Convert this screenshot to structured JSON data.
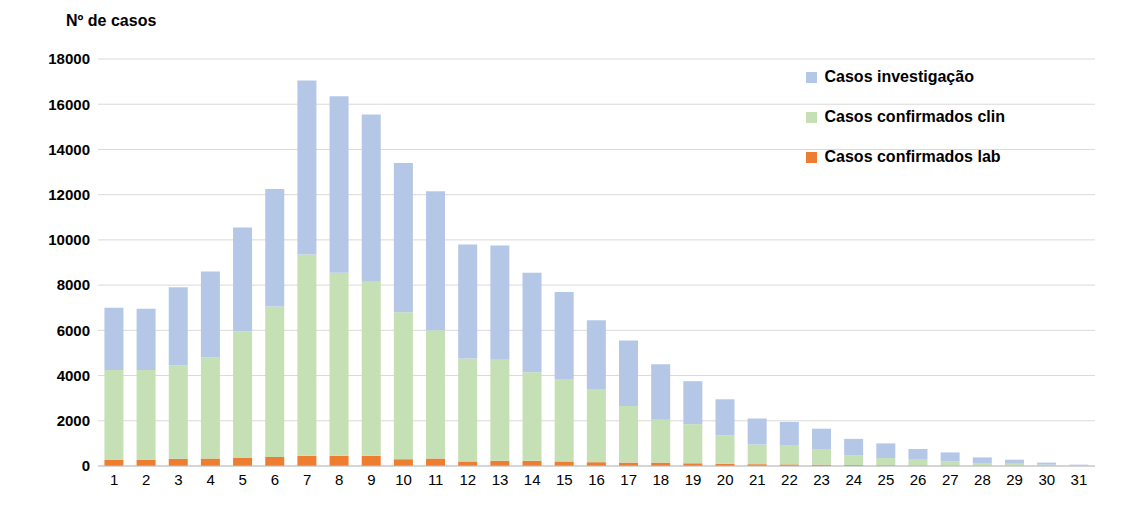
{
  "chart_data": {
    "type": "bar",
    "y_label": "Nº de casos",
    "stacked": true,
    "grid": true,
    "legend": "top-right",
    "categories": [
      "1",
      "2",
      "3",
      "4",
      "5",
      "6",
      "7",
      "8",
      "9",
      "10",
      "11",
      "12",
      "13",
      "14",
      "15",
      "16",
      "17",
      "18",
      "19",
      "20",
      "21",
      "22",
      "23",
      "24",
      "25",
      "26",
      "27",
      "28",
      "29",
      "30",
      "31"
    ],
    "series": [
      {
        "name": "Casos confirmados lab",
        "color": "#ed7d31",
        "values": [
          280,
          280,
          320,
          330,
          370,
          400,
          450,
          450,
          450,
          300,
          330,
          200,
          230,
          230,
          200,
          170,
          150,
          150,
          120,
          100,
          80,
          70,
          60,
          40,
          30,
          20,
          20,
          10,
          10,
          5,
          0
        ]
      },
      {
        "name": "Casos confirmados clin",
        "color": "#c5e0b4",
        "values": [
          3970,
          3970,
          4130,
          4470,
          5580,
          6650,
          8900,
          8100,
          7700,
          6500,
          5670,
          4550,
          4470,
          3920,
          3650,
          3230,
          2500,
          1900,
          1730,
          1250,
          870,
          830,
          690,
          440,
          320,
          260,
          180,
          120,
          90,
          55,
          20
        ]
      },
      {
        "name": "Casos investigação",
        "color": "#b4c7e7",
        "values": [
          2750,
          2700,
          3450,
          3800,
          4600,
          5200,
          7700,
          7800,
          7400,
          6600,
          6150,
          5050,
          5050,
          4400,
          3850,
          3050,
          2900,
          2450,
          1900,
          1600,
          1150,
          1050,
          900,
          720,
          650,
          470,
          400,
          250,
          180,
          90,
          40
        ]
      }
    ],
    "ylim": [
      0,
      18000
    ],
    "yticks": [
      0,
      2000,
      4000,
      6000,
      8000,
      10000,
      12000,
      14000,
      16000,
      18000
    ]
  }
}
